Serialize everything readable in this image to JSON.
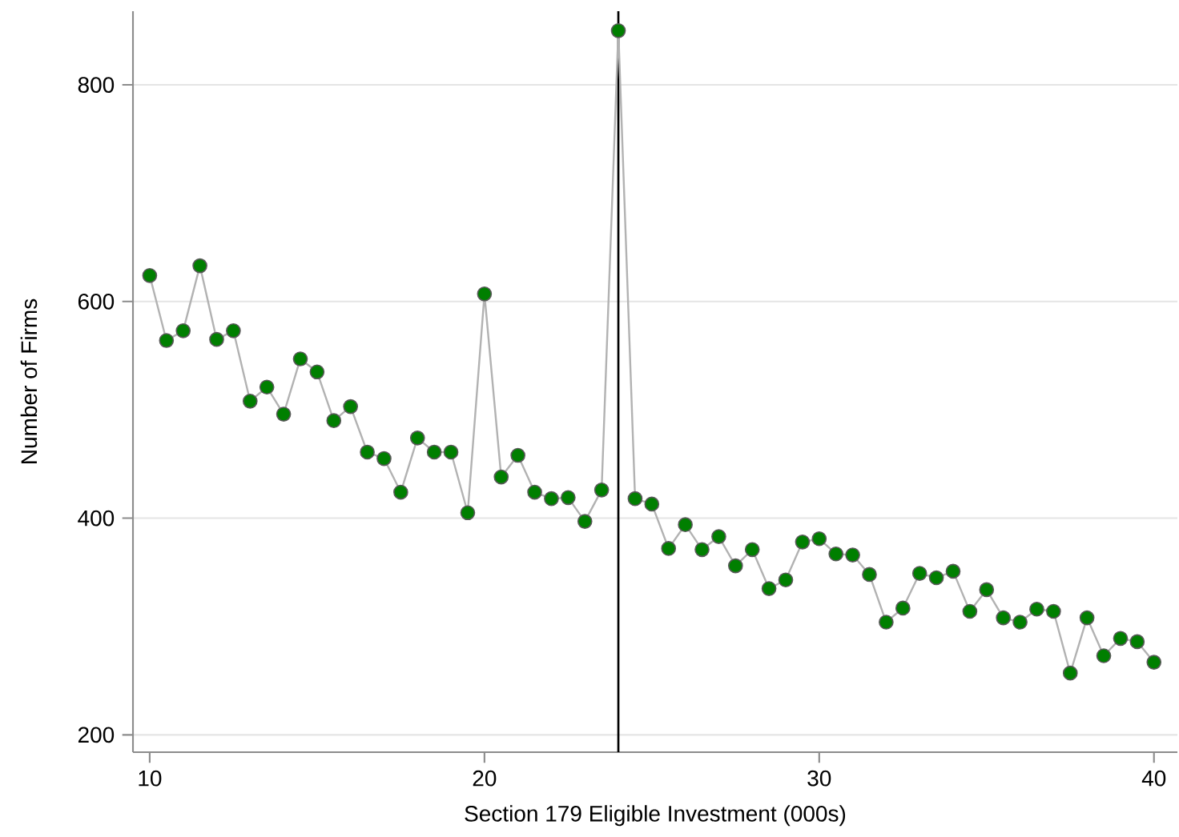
{
  "chart_data": {
    "type": "line",
    "xlabel": "Section 179 Eligible Investment (000s)",
    "ylabel": "Number of Firms",
    "x": [
      10,
      10.5,
      11,
      11.5,
      12,
      12.5,
      13,
      13.5,
      14,
      14.5,
      15,
      15.5,
      16,
      16.5,
      17,
      17.5,
      18,
      18.5,
      19,
      19.5,
      20,
      20.5,
      21,
      21.5,
      22,
      22.5,
      23,
      23.5,
      24,
      24.5,
      25,
      25.5,
      26,
      26.5,
      27,
      27.5,
      28,
      28.5,
      29,
      29.5,
      30,
      30.5,
      31,
      31.5,
      32,
      32.5,
      33,
      33.5,
      34,
      34.5,
      35,
      35.5,
      36,
      36.5,
      37,
      37.5,
      38,
      38.5,
      39,
      39.5,
      40
    ],
    "series": [
      {
        "color": "#007f00",
        "values": [
          624,
          564,
          573,
          633,
          565,
          573,
          508,
          521,
          496,
          547,
          535,
          490,
          503,
          461,
          455,
          424,
          474,
          461,
          461,
          405,
          607,
          438,
          458,
          424,
          418,
          419,
          397,
          426,
          850,
          418,
          413,
          372,
          394,
          371,
          383,
          356,
          371,
          335,
          343,
          378,
          381,
          367,
          366,
          348,
          304,
          317,
          349,
          345,
          351,
          314,
          334,
          308,
          304,
          316,
          314,
          257,
          308,
          273,
          289,
          286,
          267
        ]
      }
    ],
    "marker": "circle",
    "xlim": [
      9.5,
      40.7
    ],
    "ylim": [
      184,
      868
    ],
    "xticks": [
      10,
      20,
      30,
      40
    ],
    "yticks": [
      200,
      400,
      600,
      800
    ],
    "grid": "y",
    "ref_lines": [
      {
        "axis": "x",
        "value": 24,
        "color": "#000000"
      }
    ]
  }
}
